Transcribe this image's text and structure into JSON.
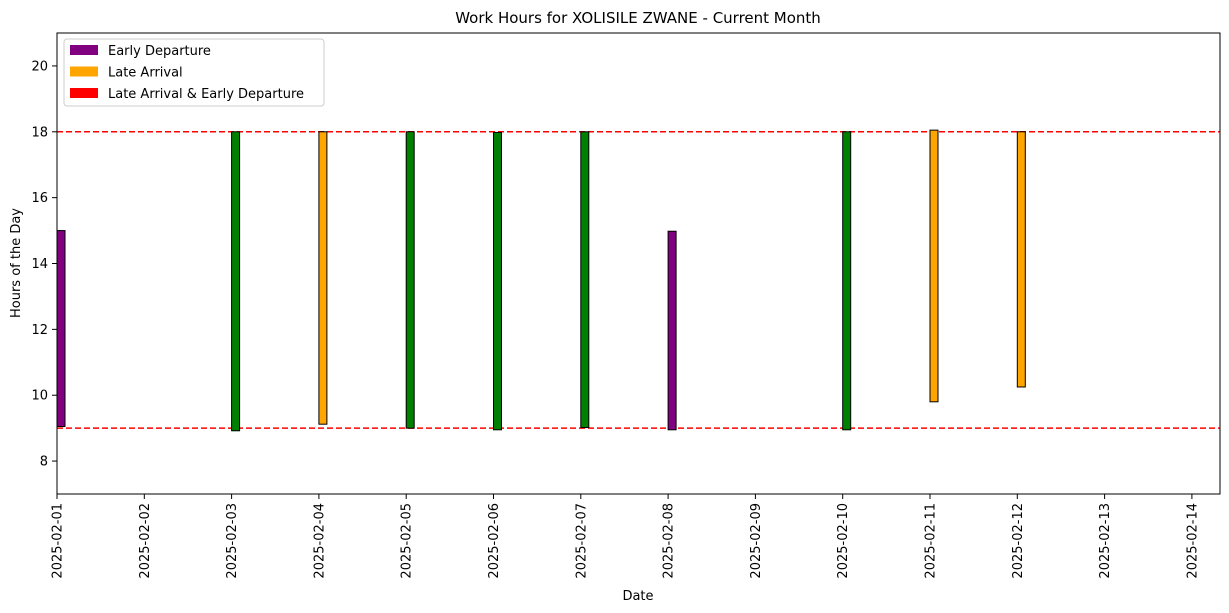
{
  "chart_data": {
    "type": "bar",
    "title": "Work Hours for XOLISILE ZWANE - Current Month",
    "xlabel": "Date",
    "ylabel": "Hours of the Day",
    "ylim": [
      7,
      21
    ],
    "yticks": [
      8,
      10,
      12,
      14,
      16,
      18,
      20
    ],
    "xticks": [
      "2025-02-01",
      "2025-02-02",
      "2025-02-03",
      "2025-02-04",
      "2025-02-05",
      "2025-02-06",
      "2025-02-07",
      "2025-02-08",
      "2025-02-09",
      "2025-02-10",
      "2025-02-11",
      "2025-02-12",
      "2025-02-13",
      "2025-02-14"
    ],
    "reference_lines": [
      9,
      18
    ],
    "reference_line_color": "#ff0000",
    "legend_position": "top-left",
    "legend": [
      {
        "label": "Early Departure",
        "color": "#800080"
      },
      {
        "label": "Late Arrival",
        "color": "#ffa500"
      },
      {
        "label": "Late Arrival & Early Departure",
        "color": "#ff0000"
      }
    ],
    "bars": [
      {
        "date": "2025-02-01",
        "start": 9.05,
        "end": 15.0,
        "color": "#800080"
      },
      {
        "date": "2025-02-03",
        "start": 8.92,
        "end": 18.0,
        "color": "#008000"
      },
      {
        "date": "2025-02-04",
        "start": 9.12,
        "end": 18.0,
        "color": "#ffa500"
      },
      {
        "date": "2025-02-05",
        "start": 9.0,
        "end": 18.0,
        "color": "#008000"
      },
      {
        "date": "2025-02-06",
        "start": 8.95,
        "end": 17.98,
        "color": "#008000"
      },
      {
        "date": "2025-02-07",
        "start": 9.02,
        "end": 18.0,
        "color": "#008000"
      },
      {
        "date": "2025-02-08",
        "start": 8.95,
        "end": 14.98,
        "color": "#800080"
      },
      {
        "date": "2025-02-10",
        "start": 8.95,
        "end": 18.0,
        "color": "#008000"
      },
      {
        "date": "2025-02-11",
        "start": 9.8,
        "end": 18.05,
        "color": "#ffa500"
      },
      {
        "date": "2025-02-12",
        "start": 10.25,
        "end": 18.0,
        "color": "#ffa500"
      }
    ]
  }
}
